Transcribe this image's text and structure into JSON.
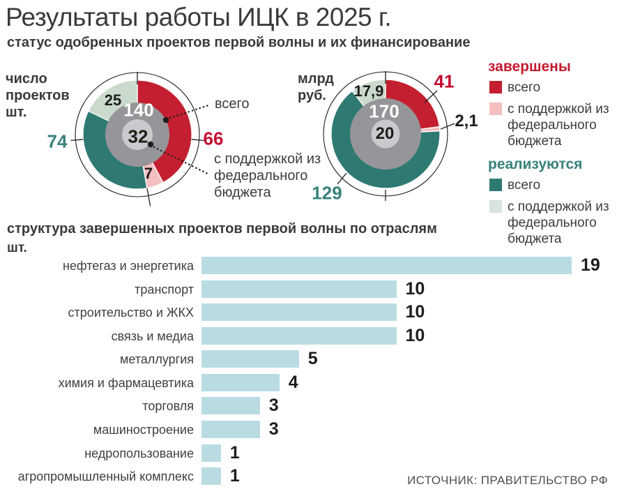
{
  "page": {
    "title": "Результаты работы ИЦК в 2025 г.",
    "subtitle": "статус одобренных проектов первой волны и их финансирование",
    "source": "ИСТОЧНИК: ПРАВИТЕЛЬСТВО РФ"
  },
  "palette": {
    "red": "#c41f31",
    "pink": "#f4bfbe",
    "teal": "#2e7a73",
    "light_green": "#cadacc",
    "legend_light": "#d8e2e0",
    "gray": "#96969a",
    "light_gray": "#c9cacd",
    "bar": "#b9dce2",
    "red_text": "#c60c30",
    "teal_text": "#37827b",
    "outline": "#1d1d1b"
  },
  "chart_data": [
    {
      "type": "donut",
      "units_label": "число проектов шт.",
      "total": 140,
      "center": {
        "outer_value": "140",
        "outer_label": "всего",
        "inner_value": "32",
        "inner_label": "с поддержкой из федерального бюджета"
      },
      "slices": [
        {
          "group": "завершены",
          "name": "всего",
          "label": "66",
          "value": 66,
          "arc": 59,
          "color": "red"
        },
        {
          "group": "завершены",
          "name": "с поддержкой из федерального бюджета",
          "label": "7",
          "value": 7,
          "arc": 7,
          "color": "pink"
        },
        {
          "group": "реализуются",
          "name": "всего",
          "label": "74",
          "value": 74,
          "arc": 49,
          "color": "teal"
        },
        {
          "group": "реализуются",
          "name": "с поддержкой из федерального бюджета",
          "label": "25",
          "value": 25,
          "arc": 25,
          "color": "light_green"
        }
      ]
    },
    {
      "type": "donut",
      "units_label": "млрд руб.",
      "total": 170,
      "center": {
        "outer_value": "170",
        "inner_value": "20"
      },
      "slices": [
        {
          "group": "завершены",
          "name": "всего",
          "label": "41",
          "value": 41,
          "arc": 38.9,
          "color": "red"
        },
        {
          "group": "завершены",
          "name": "с поддержкой из федерального бюджета",
          "label": "2,1",
          "value": 2.1,
          "arc": 2.1,
          "color": "pink"
        },
        {
          "group": "реализуются",
          "name": "всего",
          "label": "129",
          "value": 129,
          "arc": 111.1,
          "color": "teal"
        },
        {
          "group": "реализуются",
          "name": "с поддержкой из федерального бюджета",
          "label": "17,9",
          "value": 17.9,
          "arc": 17.9,
          "color": "light_green"
        }
      ]
    },
    {
      "type": "bar",
      "title": "структура завершенных проектов первой волны по отраслям",
      "unit": "шт.",
      "categories": [
        "нефтегаз и энергетика",
        "транспорт",
        "строительство и ЖКХ",
        "связь и медиа",
        "металлургия",
        "химия и фармацевтика",
        "торговля",
        "машиностроение",
        "недропользование",
        "агропромышленный комплекс"
      ],
      "values": [
        19,
        10,
        10,
        10,
        5,
        4,
        3,
        3,
        1,
        1
      ]
    }
  ],
  "legend": {
    "groups": [
      {
        "heading": "завершены",
        "items": [
          {
            "label": "всего",
            "swatch": "red"
          },
          {
            "label": "с поддержкой из федерального бюджета",
            "swatch": "pink"
          }
        ]
      },
      {
        "heading": "реализуются",
        "items": [
          {
            "label": "всего",
            "swatch": "teal"
          },
          {
            "label": "с поддержкой из федерального бюджета",
            "swatch": "legend_light"
          }
        ]
      }
    ]
  }
}
